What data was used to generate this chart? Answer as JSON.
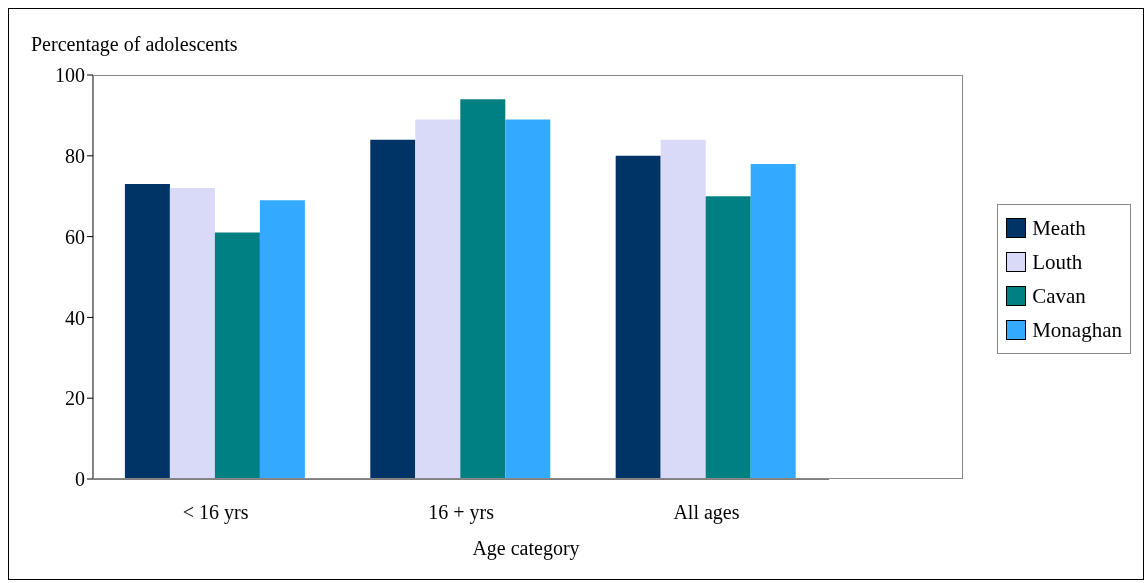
{
  "chart_data": {
    "type": "bar",
    "ylabel": "Percentage of adolescents",
    "xlabel": "Age category",
    "categories": [
      "< 16 yrs",
      "16 + yrs",
      "All ages"
    ],
    "series": [
      {
        "name": "Meath",
        "color": "#003366",
        "values": [
          73,
          84,
          80
        ]
      },
      {
        "name": "Louth",
        "color": "#d9d9f8",
        "values": [
          72,
          89,
          84
        ]
      },
      {
        "name": "Cavan",
        "color": "#008080",
        "values": [
          61,
          94,
          70
        ]
      },
      {
        "name": "Monaghan",
        "color": "#33aaff",
        "values": [
          69,
          89,
          78
        ]
      }
    ],
    "ylim": [
      0,
      100
    ],
    "yticks": [
      0,
      20,
      40,
      60,
      80,
      100
    ],
    "legend": "right"
  }
}
